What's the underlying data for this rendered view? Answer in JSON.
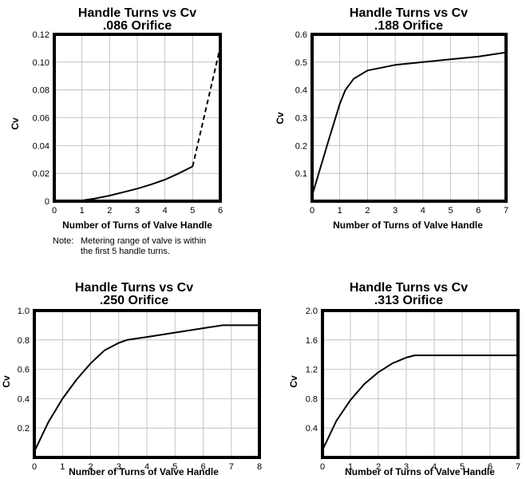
{
  "chart_data": [
    {
      "type": "line",
      "title": "Handle Turns vs Cv",
      "subtitle": ".086 Orifice",
      "xlabel": "Number of Turns of Valve Handle",
      "ylabel": "Cv",
      "xlim": [
        0,
        6
      ],
      "ylim": [
        0,
        0.12
      ],
      "x_ticks": [
        "0",
        "1",
        "2",
        "3",
        "4",
        "5",
        "6"
      ],
      "y_ticks": [
        "0",
        "0.02",
        "0.04",
        "0.06",
        "0.08",
        "0.10",
        "0.12"
      ],
      "grid": true,
      "series": [
        {
          "style": "solid",
          "x": [
            0.7,
            1.0,
            1.5,
            2.0,
            2.5,
            3.0,
            3.5,
            4.0,
            4.5,
            5.0
          ],
          "y": [
            0.0,
            0.0005,
            0.002,
            0.004,
            0.0065,
            0.009,
            0.012,
            0.0155,
            0.02,
            0.025
          ]
        },
        {
          "style": "dashed",
          "x": [
            5.0,
            6.0
          ],
          "y": [
            0.025,
            0.111
          ]
        }
      ],
      "note_label": "Note:",
      "note_lines": [
        "Metering range of valve is within",
        "the first 5 handle turns."
      ]
    },
    {
      "type": "line",
      "title": "Handle Turns vs Cv",
      "subtitle": ".188 Orifice",
      "xlabel": "Number of Turns of Valve Handle",
      "ylabel": "Cv",
      "xlim": [
        0,
        7
      ],
      "ylim": [
        0,
        0.6
      ],
      "x_ticks": [
        "0",
        "1",
        "2",
        "3",
        "4",
        "5",
        "6",
        "7"
      ],
      "y_ticks": [
        "",
        "0.1",
        "0.2",
        "0.3",
        "0.4",
        "0.5",
        "0.6"
      ],
      "grid": true,
      "series": [
        {
          "style": "solid",
          "x": [
            0.0,
            0.6,
            1.0,
            1.2,
            1.5,
            2.0,
            3.0,
            4.0,
            5.0,
            6.0,
            7.0
          ],
          "y": [
            0.02,
            0.22,
            0.35,
            0.4,
            0.44,
            0.47,
            0.49,
            0.5,
            0.51,
            0.52,
            0.535
          ]
        }
      ]
    },
    {
      "type": "line",
      "title": "Handle Turns vs Cv",
      "subtitle": ".250 Orifice",
      "xlabel": "Number of Turns of Valve Handle",
      "ylabel": "Cv",
      "xlim": [
        0,
        8
      ],
      "ylim": [
        0,
        1.0
      ],
      "x_ticks": [
        "0",
        "1",
        "2",
        "3",
        "4",
        "5",
        "6",
        "7",
        "8"
      ],
      "y_ticks": [
        "",
        "0.2",
        "0.4",
        "0.6",
        "0.8",
        "1.0"
      ],
      "grid": true,
      "series": [
        {
          "style": "solid",
          "x": [
            0.0,
            0.5,
            1.0,
            1.5,
            2.0,
            2.5,
            3.0,
            3.3,
            4.0,
            5.0,
            6.0,
            6.7,
            8.0
          ],
          "y": [
            0.04,
            0.24,
            0.4,
            0.53,
            0.64,
            0.73,
            0.78,
            0.8,
            0.82,
            0.85,
            0.88,
            0.9,
            0.9
          ]
        }
      ]
    },
    {
      "type": "line",
      "title": "Handle Turns vs Cv",
      "subtitle": ".313 Orifice",
      "xlabel": "Number of Turns of Valve Handle",
      "ylabel": "Cv",
      "xlim": [
        0,
        7
      ],
      "ylim": [
        0,
        2.0
      ],
      "x_ticks": [
        "0",
        "1",
        "2",
        "3",
        "4",
        "5",
        "6",
        "7"
      ],
      "y_ticks": [
        "",
        "0.4",
        "0.8",
        "1.2",
        "1.6",
        "2.0"
      ],
      "grid": true,
      "series": [
        {
          "style": "solid",
          "x": [
            0.0,
            0.5,
            1.0,
            1.5,
            2.0,
            2.5,
            3.0,
            3.3,
            4.0,
            5.0,
            6.0,
            7.0
          ],
          "y": [
            0.1,
            0.5,
            0.78,
            1.0,
            1.16,
            1.28,
            1.36,
            1.39,
            1.39,
            1.39,
            1.39,
            1.39
          ]
        }
      ]
    }
  ]
}
